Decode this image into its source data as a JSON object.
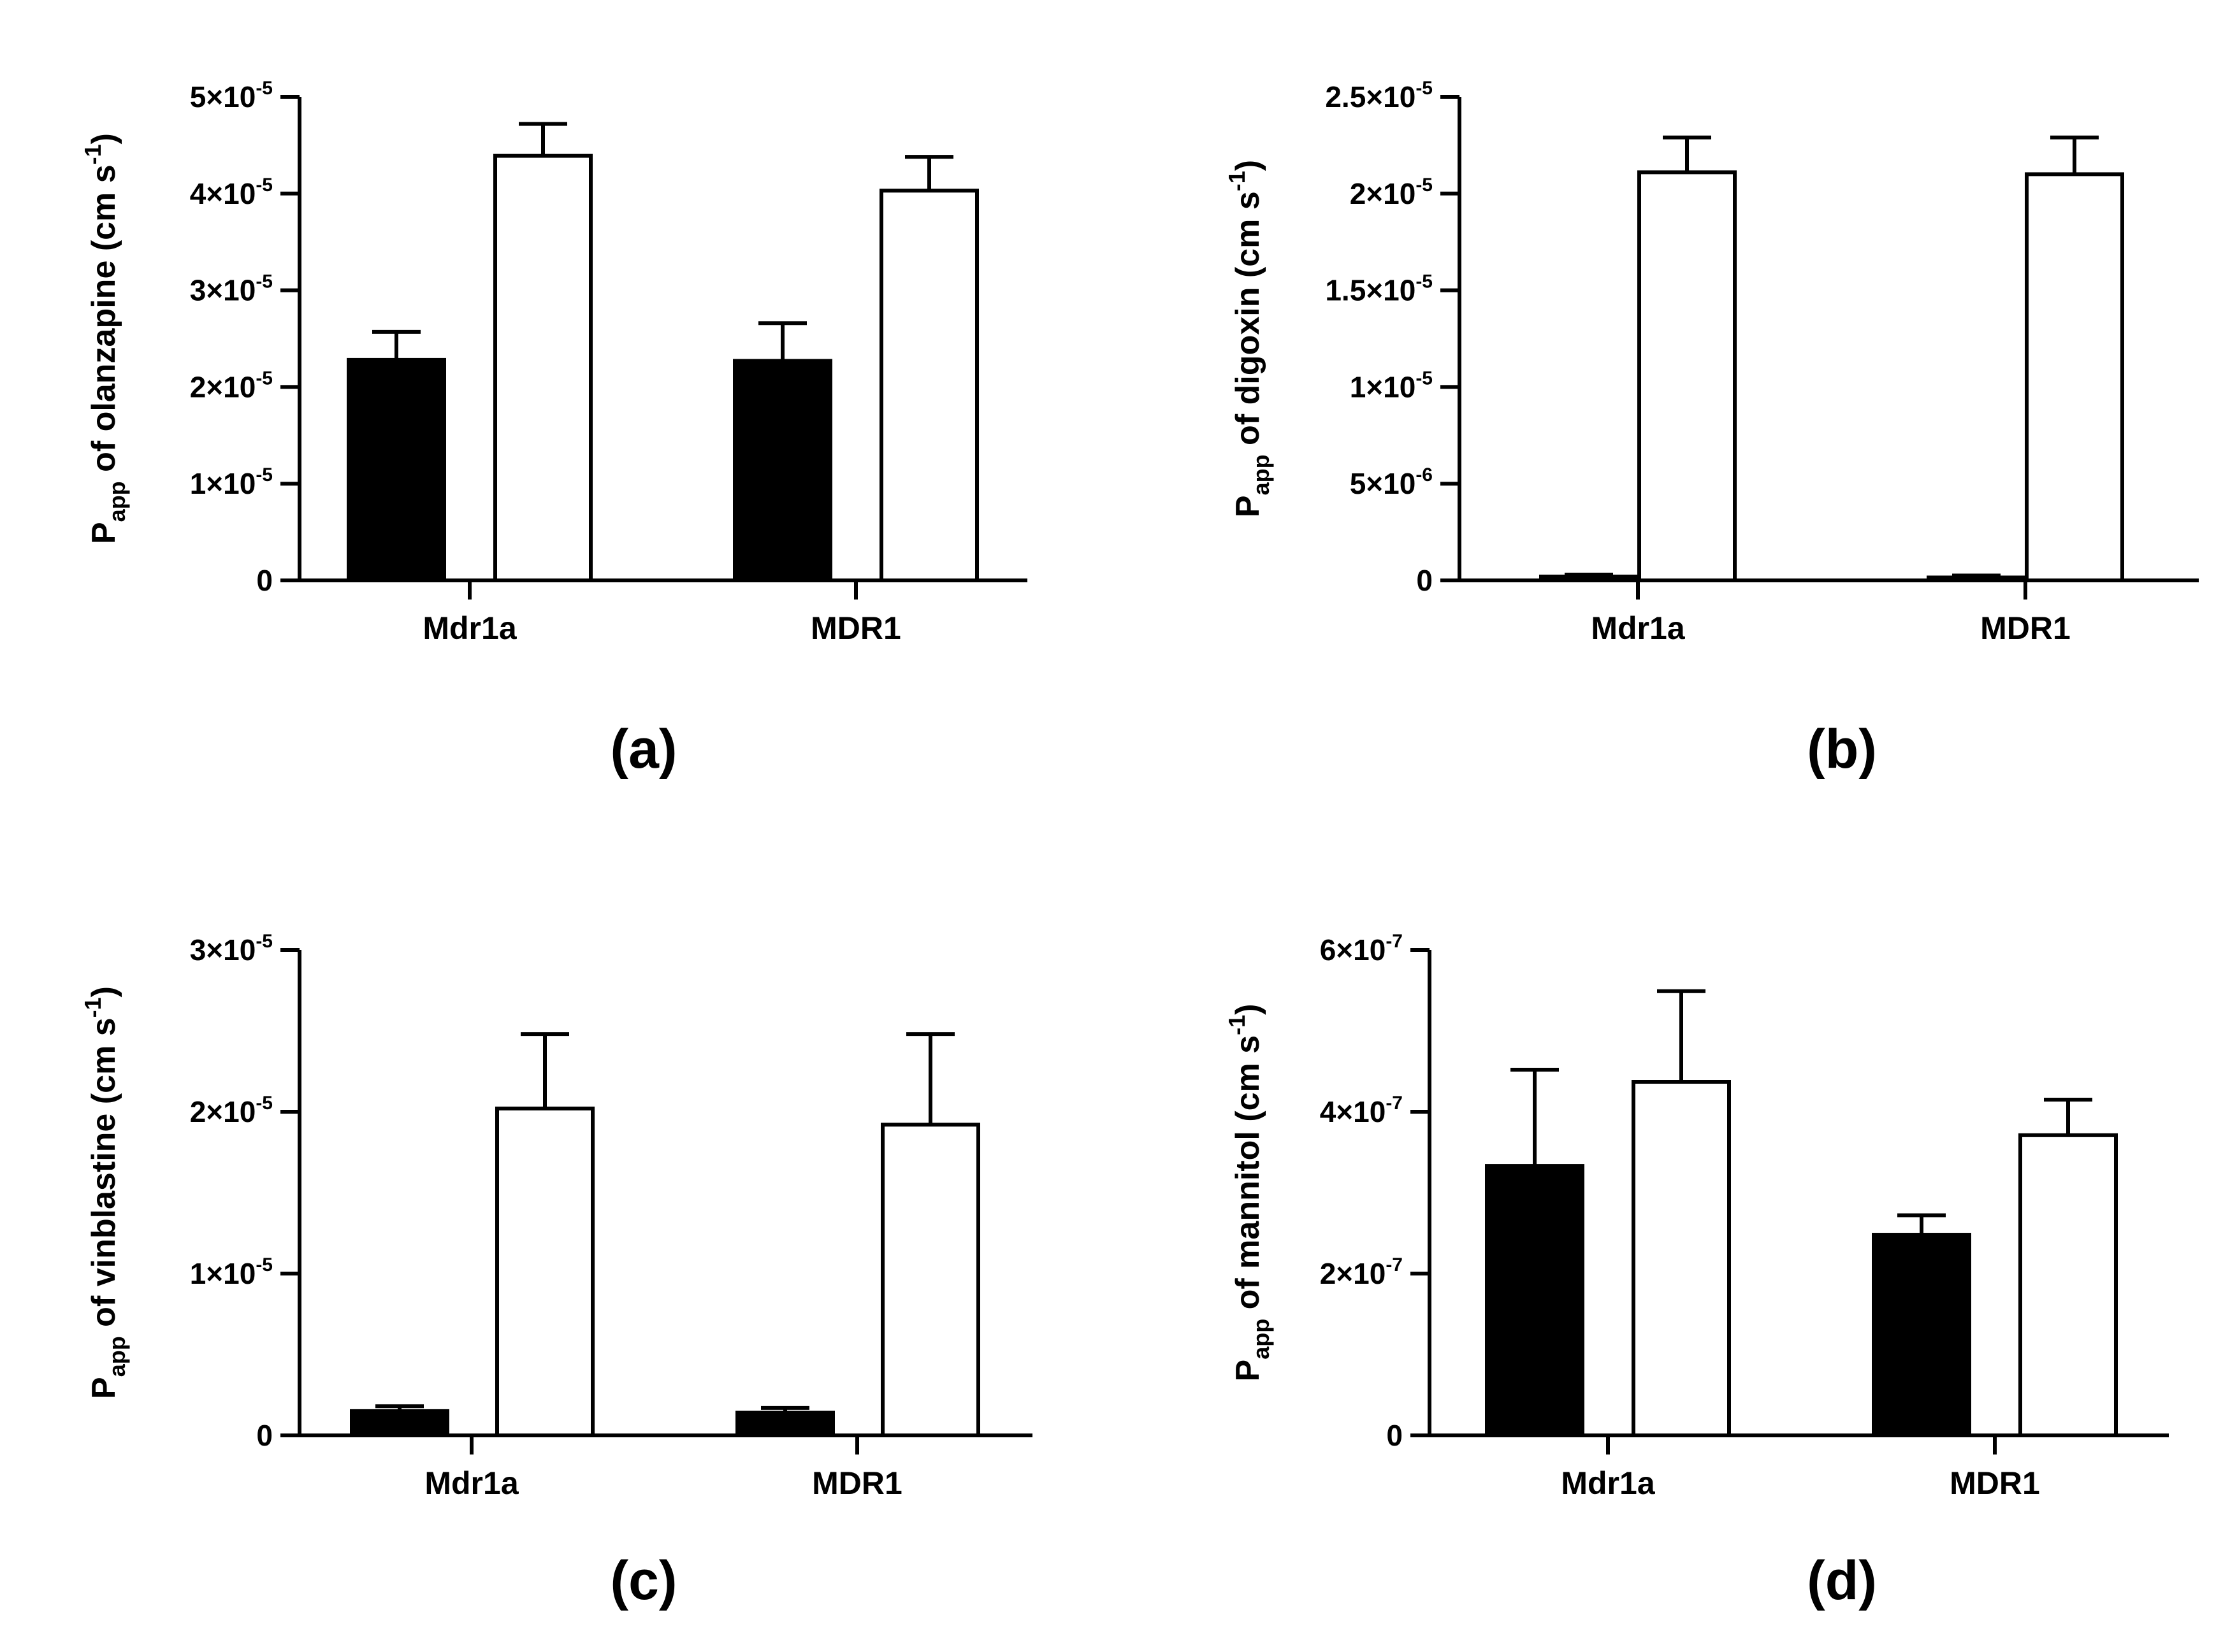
{
  "figure": {
    "panels_order": [
      "a",
      "b",
      "c",
      "d"
    ]
  },
  "colors": {
    "series_fill": [
      "#000000",
      "#ffffff"
    ],
    "stroke": "#000000"
  },
  "chart_data": [
    {
      "panel_label": "(a)",
      "type": "bar",
      "categories": [
        "Mdr1a",
        "MDR1"
      ],
      "series": [
        {
          "name": "filled",
          "values": [
            2.28e-05,
            2.27e-05
          ],
          "errors": [
            2.9e-06,
            3.9e-06
          ]
        },
        {
          "name": "open",
          "values": [
            4.39e-05,
            4.03e-05
          ],
          "errors": [
            3.3e-06,
            3.5e-06
          ]
        }
      ],
      "ylim": [
        0,
        5e-05
      ],
      "yticks": [
        {
          "value": 0,
          "mantissa": "0",
          "exp": ""
        },
        {
          "value": 1e-05,
          "mantissa": "1×10",
          "exp": "-5"
        },
        {
          "value": 2e-05,
          "mantissa": "2×10",
          "exp": "-5"
        },
        {
          "value": 3e-05,
          "mantissa": "3×10",
          "exp": "-5"
        },
        {
          "value": 4e-05,
          "mantissa": "4×10",
          "exp": "-5"
        },
        {
          "value": 5e-05,
          "mantissa": "5×10",
          "exp": "-5"
        }
      ],
      "ylabel": {
        "p": "P",
        "sub": "app",
        "text": " of olanzapine (cm s",
        "sup": "-1",
        "close": ")"
      },
      "xlabel": ""
    },
    {
      "panel_label": "(b)",
      "type": "bar",
      "categories": [
        "Mdr1a",
        "MDR1"
      ],
      "series": [
        {
          "name": "filled",
          "values": [
            2e-07,
            1.5e-07
          ],
          "errors": [
            1e-07,
            1e-07
          ]
        },
        {
          "name": "open",
          "values": [
            2.11e-05,
            2.1e-05
          ],
          "errors": [
            1.8e-06,
            1.9e-06
          ]
        }
      ],
      "ylim": [
        0,
        2.5e-05
      ],
      "yticks": [
        {
          "value": 0,
          "mantissa": "0",
          "exp": ""
        },
        {
          "value": 5e-06,
          "mantissa": "5×10",
          "exp": "-6"
        },
        {
          "value": 1e-05,
          "mantissa": "1×10",
          "exp": "-5"
        },
        {
          "value": 1.5e-05,
          "mantissa": "1.5×10",
          "exp": "-5"
        },
        {
          "value": 2e-05,
          "mantissa": "2×10",
          "exp": "-5"
        },
        {
          "value": 2.5e-05,
          "mantissa": "2.5×10",
          "exp": "-5"
        }
      ],
      "ylabel": {
        "p": "P",
        "sub": "app",
        "text": " of digoxin (cm s",
        "sup": "-1",
        "close": ")"
      },
      "xlabel": ""
    },
    {
      "panel_label": "(c)",
      "type": "bar",
      "categories": [
        "Mdr1a",
        "MDR1"
      ],
      "series": [
        {
          "name": "filled",
          "values": [
            1.5e-06,
            1.4e-06
          ],
          "errors": [
            3e-07,
            3e-07
          ]
        },
        {
          "name": "open",
          "values": [
            2.02e-05,
            1.92e-05
          ],
          "errors": [
            4.6e-06,
            5.6e-06
          ]
        }
      ],
      "ylim": [
        0,
        3e-05
      ],
      "yticks": [
        {
          "value": 0,
          "mantissa": "0",
          "exp": ""
        },
        {
          "value": 1e-05,
          "mantissa": "1×10",
          "exp": "-5"
        },
        {
          "value": 2e-05,
          "mantissa": "2×10",
          "exp": "-5"
        },
        {
          "value": 3e-05,
          "mantissa": "3×10",
          "exp": "-5"
        }
      ],
      "ylabel": {
        "p": "P",
        "sub": "app",
        "text": " of vinblastine (cm s",
        "sup": "-1",
        "close": ")"
      },
      "xlabel": ""
    },
    {
      "panel_label": "(d)",
      "type": "bar",
      "categories": [
        "Mdr1a",
        "MDR1"
      ],
      "series": [
        {
          "name": "filled",
          "values": [
            3.33e-07,
            2.48e-07
          ],
          "errors": [
            1.19e-07,
            2.4e-08
          ]
        },
        {
          "name": "open",
          "values": [
            4.37e-07,
            3.71e-07
          ],
          "errors": [
            1.12e-07,
            4.4e-08
          ]
        }
      ],
      "ylim": [
        0,
        6e-07
      ],
      "yticks": [
        {
          "value": 0,
          "mantissa": "0",
          "exp": ""
        },
        {
          "value": 2e-07,
          "mantissa": "2×10",
          "exp": "-7"
        },
        {
          "value": 4e-07,
          "mantissa": "4×10",
          "exp": "-7"
        },
        {
          "value": 6e-07,
          "mantissa": "6×10",
          "exp": "-7"
        }
      ],
      "ylabel": {
        "p": "P",
        "sub": "app",
        "text": " of mannitol (cm s",
        "sup": "-1",
        "close": ")"
      },
      "xlabel": ""
    }
  ]
}
